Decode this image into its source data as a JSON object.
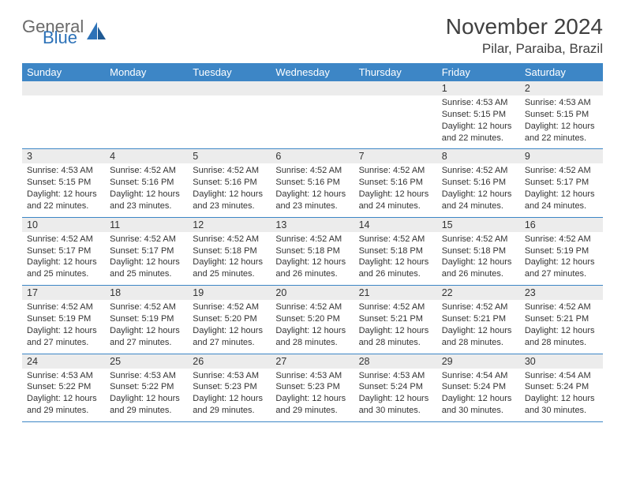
{
  "brand": {
    "part1": "General",
    "part2": "Blue"
  },
  "title": "November 2024",
  "location": "Pilar, Paraiba, Brazil",
  "colors": {
    "header_bg": "#3d86c6",
    "daynum_bg": "#ececec",
    "rule": "#3d86c6",
    "text": "#333333",
    "title_text": "#404040",
    "logo_gray": "#6a6a6a",
    "logo_blue": "#2d72b8",
    "page_bg": "#ffffff"
  },
  "typography": {
    "title_fontsize": 28,
    "location_fontsize": 17,
    "dayhead_fontsize": 13,
    "daynum_fontsize": 12.5,
    "info_fontsize": 11,
    "font_family": "Arial"
  },
  "day_names": [
    "Sunday",
    "Monday",
    "Tuesday",
    "Wednesday",
    "Thursday",
    "Friday",
    "Saturday"
  ],
  "weeks": [
    [
      {
        "n": "",
        "lines": []
      },
      {
        "n": "",
        "lines": []
      },
      {
        "n": "",
        "lines": []
      },
      {
        "n": "",
        "lines": []
      },
      {
        "n": "",
        "lines": []
      },
      {
        "n": "1",
        "lines": [
          "Sunrise: 4:53 AM",
          "Sunset: 5:15 PM",
          "Daylight: 12 hours and 22 minutes."
        ]
      },
      {
        "n": "2",
        "lines": [
          "Sunrise: 4:53 AM",
          "Sunset: 5:15 PM",
          "Daylight: 12 hours and 22 minutes."
        ]
      }
    ],
    [
      {
        "n": "3",
        "lines": [
          "Sunrise: 4:53 AM",
          "Sunset: 5:15 PM",
          "Daylight: 12 hours and 22 minutes."
        ]
      },
      {
        "n": "4",
        "lines": [
          "Sunrise: 4:52 AM",
          "Sunset: 5:16 PM",
          "Daylight: 12 hours and 23 minutes."
        ]
      },
      {
        "n": "5",
        "lines": [
          "Sunrise: 4:52 AM",
          "Sunset: 5:16 PM",
          "Daylight: 12 hours and 23 minutes."
        ]
      },
      {
        "n": "6",
        "lines": [
          "Sunrise: 4:52 AM",
          "Sunset: 5:16 PM",
          "Daylight: 12 hours and 23 minutes."
        ]
      },
      {
        "n": "7",
        "lines": [
          "Sunrise: 4:52 AM",
          "Sunset: 5:16 PM",
          "Daylight: 12 hours and 24 minutes."
        ]
      },
      {
        "n": "8",
        "lines": [
          "Sunrise: 4:52 AM",
          "Sunset: 5:16 PM",
          "Daylight: 12 hours and 24 minutes."
        ]
      },
      {
        "n": "9",
        "lines": [
          "Sunrise: 4:52 AM",
          "Sunset: 5:17 PM",
          "Daylight: 12 hours and 24 minutes."
        ]
      }
    ],
    [
      {
        "n": "10",
        "lines": [
          "Sunrise: 4:52 AM",
          "Sunset: 5:17 PM",
          "Daylight: 12 hours and 25 minutes."
        ]
      },
      {
        "n": "11",
        "lines": [
          "Sunrise: 4:52 AM",
          "Sunset: 5:17 PM",
          "Daylight: 12 hours and 25 minutes."
        ]
      },
      {
        "n": "12",
        "lines": [
          "Sunrise: 4:52 AM",
          "Sunset: 5:18 PM",
          "Daylight: 12 hours and 25 minutes."
        ]
      },
      {
        "n": "13",
        "lines": [
          "Sunrise: 4:52 AM",
          "Sunset: 5:18 PM",
          "Daylight: 12 hours and 26 minutes."
        ]
      },
      {
        "n": "14",
        "lines": [
          "Sunrise: 4:52 AM",
          "Sunset: 5:18 PM",
          "Daylight: 12 hours and 26 minutes."
        ]
      },
      {
        "n": "15",
        "lines": [
          "Sunrise: 4:52 AM",
          "Sunset: 5:18 PM",
          "Daylight: 12 hours and 26 minutes."
        ]
      },
      {
        "n": "16",
        "lines": [
          "Sunrise: 4:52 AM",
          "Sunset: 5:19 PM",
          "Daylight: 12 hours and 27 minutes."
        ]
      }
    ],
    [
      {
        "n": "17",
        "lines": [
          "Sunrise: 4:52 AM",
          "Sunset: 5:19 PM",
          "Daylight: 12 hours and 27 minutes."
        ]
      },
      {
        "n": "18",
        "lines": [
          "Sunrise: 4:52 AM",
          "Sunset: 5:19 PM",
          "Daylight: 12 hours and 27 minutes."
        ]
      },
      {
        "n": "19",
        "lines": [
          "Sunrise: 4:52 AM",
          "Sunset: 5:20 PM",
          "Daylight: 12 hours and 27 minutes."
        ]
      },
      {
        "n": "20",
        "lines": [
          "Sunrise: 4:52 AM",
          "Sunset: 5:20 PM",
          "Daylight: 12 hours and 28 minutes."
        ]
      },
      {
        "n": "21",
        "lines": [
          "Sunrise: 4:52 AM",
          "Sunset: 5:21 PM",
          "Daylight: 12 hours and 28 minutes."
        ]
      },
      {
        "n": "22",
        "lines": [
          "Sunrise: 4:52 AM",
          "Sunset: 5:21 PM",
          "Daylight: 12 hours and 28 minutes."
        ]
      },
      {
        "n": "23",
        "lines": [
          "Sunrise: 4:52 AM",
          "Sunset: 5:21 PM",
          "Daylight: 12 hours and 28 minutes."
        ]
      }
    ],
    [
      {
        "n": "24",
        "lines": [
          "Sunrise: 4:53 AM",
          "Sunset: 5:22 PM",
          "Daylight: 12 hours and 29 minutes."
        ]
      },
      {
        "n": "25",
        "lines": [
          "Sunrise: 4:53 AM",
          "Sunset: 5:22 PM",
          "Daylight: 12 hours and 29 minutes."
        ]
      },
      {
        "n": "26",
        "lines": [
          "Sunrise: 4:53 AM",
          "Sunset: 5:23 PM",
          "Daylight: 12 hours and 29 minutes."
        ]
      },
      {
        "n": "27",
        "lines": [
          "Sunrise: 4:53 AM",
          "Sunset: 5:23 PM",
          "Daylight: 12 hours and 29 minutes."
        ]
      },
      {
        "n": "28",
        "lines": [
          "Sunrise: 4:53 AM",
          "Sunset: 5:24 PM",
          "Daylight: 12 hours and 30 minutes."
        ]
      },
      {
        "n": "29",
        "lines": [
          "Sunrise: 4:54 AM",
          "Sunset: 5:24 PM",
          "Daylight: 12 hours and 30 minutes."
        ]
      },
      {
        "n": "30",
        "lines": [
          "Sunrise: 4:54 AM",
          "Sunset: 5:24 PM",
          "Daylight: 12 hours and 30 minutes."
        ]
      }
    ]
  ]
}
